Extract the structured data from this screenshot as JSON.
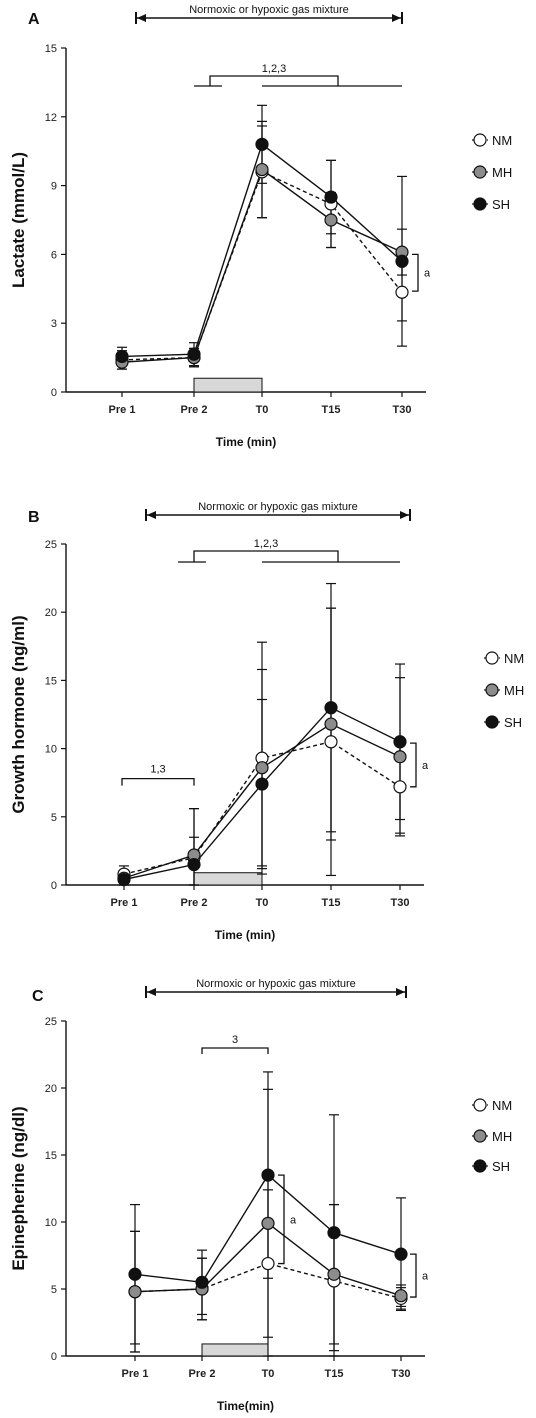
{
  "chart_data": [
    {
      "type": "line",
      "panel_label": "A",
      "categories": [
        "Pre 1",
        "Pre 2",
        "T0",
        "T15",
        "T30"
      ],
      "xlabel": "Time (min)",
      "ylabel": "Lactate (mmol/L)",
      "ylim": [
        0,
        15
      ],
      "yticks": [
        0,
        3,
        6,
        9,
        12,
        15
      ],
      "gas_label": "Normoxic or hypoxic gas mixture",
      "comparison_label": "1,2,3",
      "sig_label": "a",
      "series": [
        {
          "name": "NM",
          "marker": "open",
          "dashed": true,
          "values": [
            1.4,
            1.5,
            9.6,
            8.2,
            4.35
          ],
          "errors": [
            0.4,
            0.4,
            2.0,
            1.9,
            1.25
          ]
        },
        {
          "name": "MH",
          "marker": "gray",
          "dashed": false,
          "values": [
            1.3,
            1.5,
            9.7,
            7.5,
            6.1
          ],
          "errors": [
            0.3,
            0.4,
            2.1,
            1.2,
            1.0
          ]
        },
        {
          "name": "SH",
          "marker": "black",
          "dashed": false,
          "values": [
            1.55,
            1.65,
            10.8,
            8.5,
            5.7
          ],
          "errors": [
            0.4,
            0.5,
            1.7,
            1.6,
            3.7
          ]
        }
      ],
      "legend_position": "right"
    },
    {
      "type": "line",
      "panel_label": "B",
      "categories": [
        "Pre 1",
        "Pre 2",
        "T0",
        "T15",
        "T30"
      ],
      "xlabel": "Time (min)",
      "ylabel": "Growth hormone (ng/ml)",
      "ylim": [
        0,
        25
      ],
      "yticks": [
        0,
        5,
        10,
        15,
        20,
        25
      ],
      "gas_label": "Normoxic or hypoxic gas mixture",
      "comparison_label": "1,2,3",
      "baseline_label": "1,3",
      "sig_label": "a",
      "series": [
        {
          "name": "NM",
          "marker": "open",
          "dashed": true,
          "values": [
            0.8,
            2.0,
            9.3,
            10.5,
            7.2
          ],
          "errors": [
            0.6,
            3.6,
            8.5,
            9.8,
            3.4
          ]
        },
        {
          "name": "MH",
          "marker": "gray",
          "dashed": false,
          "values": [
            0.5,
            2.2,
            8.6,
            11.8,
            9.4
          ],
          "errors": [
            0.5,
            3.4,
            7.2,
            8.5,
            5.8
          ]
        },
        {
          "name": "SH",
          "marker": "black",
          "dashed": false,
          "values": [
            0.4,
            1.5,
            7.4,
            13.0,
            10.5
          ],
          "errors": [
            0.4,
            2.0,
            6.2,
            9.1,
            5.7
          ]
        }
      ],
      "legend_position": "right"
    },
    {
      "type": "line",
      "panel_label": "C",
      "categories": [
        "Pre 1",
        "Pre 2",
        "T0",
        "T15",
        "T30"
      ],
      "xlabel": "Time(min)",
      "ylabel": "Epinepherine (ng/dl)",
      "ylim": [
        0,
        25
      ],
      "yticks": [
        0,
        5,
        10,
        15,
        20,
        25
      ],
      "gas_label": "Normoxic or hypoxic gas mixture",
      "comparison_label": "3",
      "sig_label": "a",
      "series": [
        {
          "name": "NM",
          "marker": "open",
          "dashed": true,
          "values": [
            4.8,
            5.0,
            6.9,
            5.6,
            4.3
          ],
          "errors": [
            4.5,
            2.3,
            5.5,
            5.7,
            0.8
          ]
        },
        {
          "name": "MH",
          "marker": "gray",
          "dashed": false,
          "values": [
            4.8,
            5.0,
            9.9,
            6.1,
            4.5
          ],
          "errors": [
            4.5,
            2.3,
            10.0,
            5.2,
            0.8
          ]
        },
        {
          "name": "SH",
          "marker": "black",
          "dashed": false,
          "values": [
            6.1,
            5.5,
            13.5,
            9.2,
            7.6
          ],
          "errors": [
            5.2,
            2.4,
            7.7,
            8.8,
            4.2
          ]
        }
      ],
      "legend_position": "right"
    }
  ],
  "colors": {
    "axis": "#111111",
    "gray_marker": "#8c8c8c",
    "gray_box": "#d8d8d8",
    "black_marker": "#111111",
    "open_marker": "#ffffff"
  }
}
